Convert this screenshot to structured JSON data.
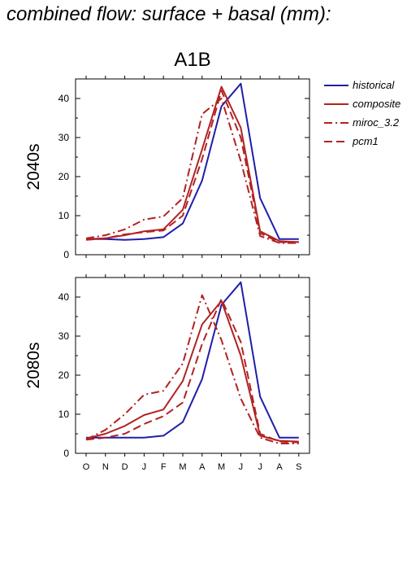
{
  "title": "combined flow: surface + basal (mm):",
  "chart_data": [
    {
      "type": "line",
      "title": "A1B",
      "ylabel": "2040s",
      "xlabel": "",
      "ylim": [
        0,
        45
      ],
      "yticks": [
        0,
        10,
        20,
        30,
        40
      ],
      "categories": [
        "O",
        "N",
        "D",
        "J",
        "F",
        "M",
        "A",
        "M",
        "J",
        "J",
        "A",
        "S"
      ],
      "legend_position": "right",
      "series": [
        {
          "name": "historical",
          "color": "#1f1fa8",
          "dash": "solid",
          "values": [
            4.0,
            4.0,
            3.8,
            4.0,
            4.5,
            8.0,
            19.0,
            38.0,
            43.8,
            14.5,
            4.0,
            4.0
          ]
        },
        {
          "name": "composite",
          "color": "#b22222",
          "dash": "solid",
          "values": [
            4.0,
            4.2,
            5.0,
            6.0,
            6.5,
            11.5,
            27.0,
            43.0,
            32.5,
            6.0,
            3.5,
            3.2
          ]
        },
        {
          "name": "miroc_3.2",
          "color": "#b22222",
          "dash": "dashdot",
          "values": [
            4.2,
            5.0,
            6.5,
            9.0,
            9.8,
            14.5,
            36.0,
            40.0,
            24.0,
            4.8,
            3.0,
            3.0
          ]
        },
        {
          "name": "pcm1",
          "color": "#b22222",
          "dash": "dash",
          "values": [
            3.8,
            4.2,
            5.2,
            5.8,
            6.2,
            10.0,
            24.5,
            42.0,
            30.0,
            5.5,
            3.2,
            3.3
          ]
        }
      ]
    },
    {
      "type": "line",
      "title": "",
      "ylabel": "2080s",
      "xlabel": "",
      "ylim": [
        0,
        45
      ],
      "yticks": [
        0,
        10,
        20,
        30,
        40
      ],
      "categories": [
        "O",
        "N",
        "D",
        "J",
        "F",
        "M",
        "A",
        "M",
        "J",
        "J",
        "A",
        "S"
      ],
      "series": [
        {
          "name": "historical",
          "color": "#1f1fa8",
          "dash": "solid",
          "values": [
            4.0,
            4.0,
            4.0,
            4.0,
            4.5,
            8.0,
            19.0,
            38.0,
            43.8,
            14.5,
            4.0,
            4.0
          ]
        },
        {
          "name": "composite",
          "color": "#b22222",
          "dash": "solid",
          "values": [
            3.8,
            5.0,
            7.0,
            9.8,
            11.2,
            18.5,
            33.0,
            39.0,
            25.0,
            4.5,
            3.2,
            3.0
          ]
        },
        {
          "name": "miroc_3.2",
          "color": "#b22222",
          "dash": "dashdot",
          "values": [
            3.5,
            6.0,
            10.0,
            15.0,
            16.0,
            23.0,
            40.5,
            29.0,
            14.0,
            4.0,
            2.5,
            2.5
          ]
        },
        {
          "name": "pcm1",
          "color": "#b22222",
          "dash": "dash",
          "values": [
            3.5,
            4.0,
            5.0,
            7.5,
            9.5,
            13.0,
            28.0,
            39.5,
            28.5,
            5.0,
            3.0,
            2.8
          ]
        }
      ]
    }
  ]
}
